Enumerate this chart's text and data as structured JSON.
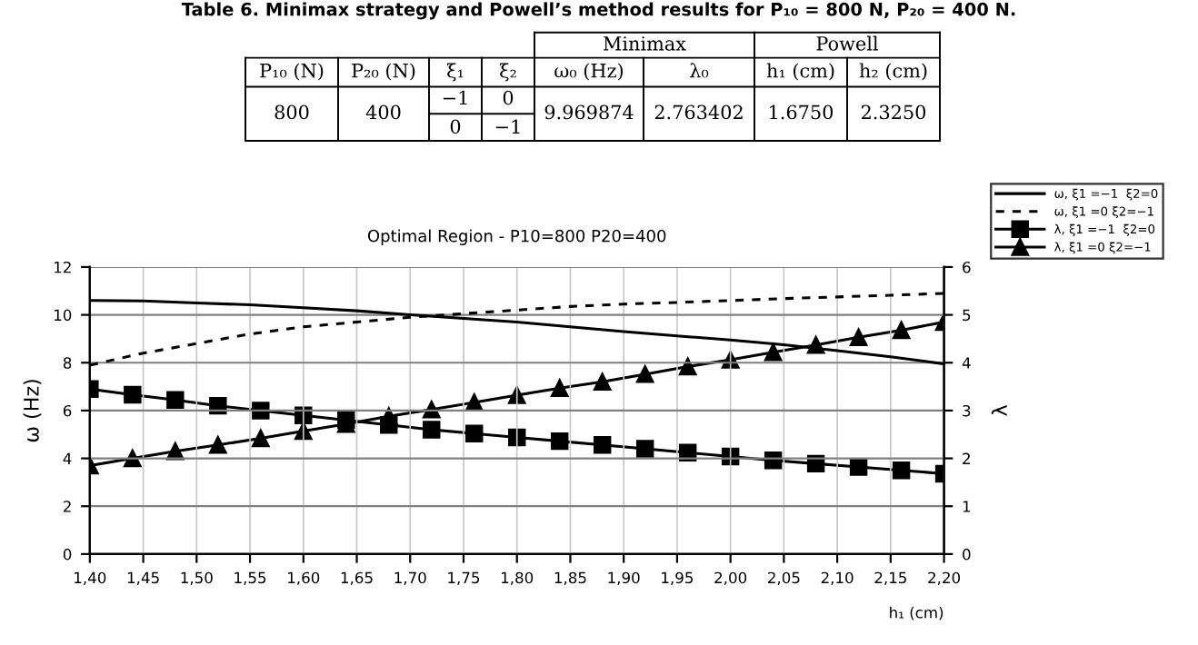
{
  "chart_data": [
    {
      "type": "other",
      "title": "Table 6. Minimax strategy and Powell’s method results for P₁₀ = 800 N, P₂₀ = 400 N.",
      "annotations": [
        "Minimax",
        "Powell",
        "P₁₀ (N)",
        "P₂₀ (N)",
        "ξ₁",
        "ξ₂",
        "ω₀ (Hz)",
        "λ₀",
        "h₁ (cm)",
        "h₂ (cm)",
        "800",
        "400",
        "−1",
        "0",
        "0",
        "−1",
        "9.969874",
        "2.763402",
        "1.6750",
        "2.3250"
      ]
    },
    {
      "type": "line",
      "title": "Optimal Region - P10=800 P20=400",
      "xlabel": "h₁ (cm)",
      "ylabel": "ω (Hz)",
      "y2label": "λ",
      "xlim": [
        1.4,
        2.2
      ],
      "xticks": [
        {
          "value": 1.4,
          "label": "1,40"
        },
        {
          "value": 1.45,
          "label": "1,45"
        },
        {
          "value": 1.5,
          "label": "1,50"
        },
        {
          "value": 1.55,
          "label": "1,55"
        },
        {
          "value": 1.6,
          "label": "1,60"
        },
        {
          "value": 1.65,
          "label": "1,65"
        },
        {
          "value": 1.7,
          "label": "1,70"
        },
        {
          "value": 1.75,
          "label": "1,75"
        },
        {
          "value": 1.8,
          "label": "1,80"
        },
        {
          "value": 1.85,
          "label": "1,85"
        },
        {
          "value": 1.9,
          "label": "1,90"
        },
        {
          "value": 1.95,
          "label": "1,95"
        },
        {
          "value": 2.0,
          "label": "2,00"
        },
        {
          "value": 2.05,
          "label": "2,05"
        },
        {
          "value": 2.1,
          "label": "2,10"
        },
        {
          "value": 2.15,
          "label": "2,15"
        },
        {
          "value": 2.2,
          "label": "2,20"
        }
      ],
      "ylim": [
        0,
        12
      ],
      "yticks": [
        0,
        2,
        4,
        6,
        8,
        10,
        12
      ],
      "y2lim": [
        0,
        6
      ],
      "y2ticks": [
        0,
        1,
        2,
        3,
        4,
        5,
        6
      ],
      "grid": true,
      "legend": "top right",
      "series": [
        {
          "name": "ω, ξ1 =−1  ξ2=0",
          "color": "#000000",
          "marker": "none",
          "line_style": "solid",
          "x": [
            1.4,
            1.45,
            1.5,
            1.55,
            1.6,
            1.65,
            1.7,
            1.75,
            1.8,
            1.85,
            1.9,
            1.95,
            2.0,
            2.05,
            2.1,
            2.15,
            2.2
          ],
          "values": [
            10.6,
            10.58,
            10.5,
            10.42,
            10.3,
            10.17,
            10.0,
            9.85,
            9.7,
            9.5,
            9.3,
            9.12,
            8.95,
            8.75,
            8.5,
            8.25,
            7.95
          ]
        },
        {
          "name": "ω, ξ1 =0 ξ2=−1",
          "color": "#000000",
          "marker": "none",
          "line_style": "dashed",
          "x": [
            1.4,
            1.45,
            1.5,
            1.55,
            1.6,
            1.65,
            1.7,
            1.75,
            1.8,
            1.85,
            1.9,
            1.95,
            2.0,
            2.05,
            2.1,
            2.15,
            2.2
          ],
          "values": [
            7.9,
            8.4,
            8.8,
            9.2,
            9.5,
            9.7,
            9.9,
            10.05,
            10.2,
            10.35,
            10.45,
            10.52,
            10.6,
            10.68,
            10.75,
            10.82,
            10.9
          ]
        },
        {
          "name": "λ, ξ1 =−1  ξ2=0",
          "color": "#000000",
          "marker": "square",
          "line_style": "solid",
          "axis": "y2",
          "x": [
            1.4,
            1.44,
            1.48,
            1.52,
            1.56,
            1.6,
            1.64,
            1.68,
            1.72,
            1.76,
            1.8,
            1.84,
            1.88,
            1.92,
            1.96,
            2.0,
            2.04,
            2.08,
            2.12,
            2.16,
            2.2
          ],
          "values": [
            3.45,
            3.33,
            3.22,
            3.1,
            3.0,
            2.9,
            2.8,
            2.7,
            2.6,
            2.52,
            2.44,
            2.36,
            2.28,
            2.2,
            2.12,
            2.04,
            1.96,
            1.89,
            1.82,
            1.75,
            1.68
          ]
        },
        {
          "name": "λ, ξ1 =0 ξ2=−1",
          "color": "#000000",
          "marker": "triangle",
          "line_style": "solid",
          "axis": "y2",
          "x": [
            1.4,
            1.44,
            1.48,
            1.52,
            1.56,
            1.6,
            1.64,
            1.68,
            1.72,
            1.76,
            1.8,
            1.84,
            1.88,
            1.92,
            1.96,
            2.0,
            2.04,
            2.08,
            2.12,
            2.16,
            2.2
          ],
          "values": [
            1.85,
            2.0,
            2.15,
            2.28,
            2.42,
            2.57,
            2.72,
            2.88,
            3.02,
            3.17,
            3.32,
            3.47,
            3.6,
            3.76,
            3.92,
            4.06,
            4.22,
            4.37,
            4.53,
            4.68,
            4.85
          ]
        }
      ]
    }
  ]
}
